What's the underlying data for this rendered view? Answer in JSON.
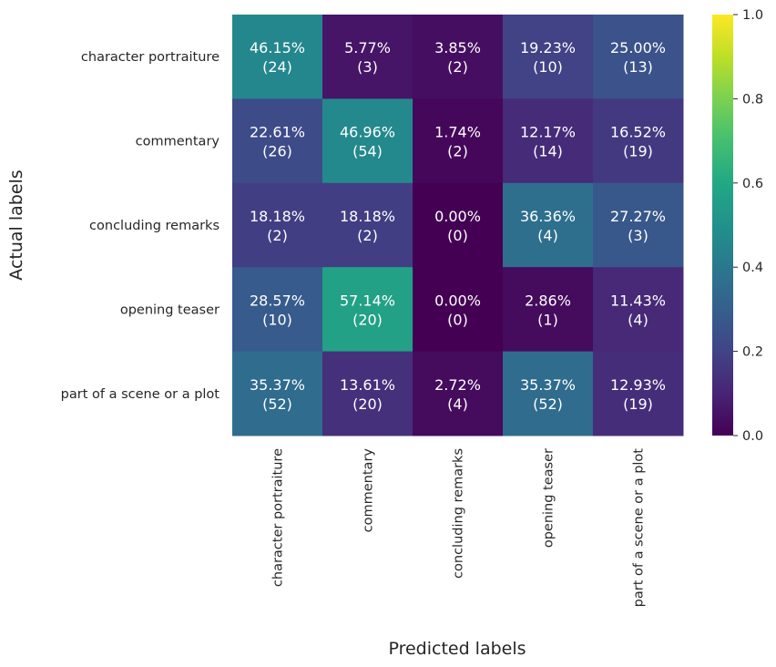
{
  "chart_data": {
    "type": "heatmap",
    "title": "",
    "xlabel": "Predicted labels",
    "ylabel": "Actual labels",
    "row_labels": [
      "character portraiture",
      "commentary",
      "concluding remarks",
      "opening teaser",
      "part of a scene or a plot"
    ],
    "col_labels": [
      "character portraiture",
      "commentary",
      "concluding remarks",
      "opening teaser",
      "part of a scene or a plot"
    ],
    "percent_labels": [
      [
        "46.15%",
        "5.77%",
        "3.85%",
        "19.23%",
        "25.00%"
      ],
      [
        "22.61%",
        "46.96%",
        "1.74%",
        "12.17%",
        "16.52%"
      ],
      [
        "18.18%",
        "18.18%",
        "0.00%",
        "36.36%",
        "27.27%"
      ],
      [
        "28.57%",
        "57.14%",
        "0.00%",
        "2.86%",
        "11.43%"
      ],
      [
        "35.37%",
        "13.61%",
        "2.72%",
        "35.37%",
        "12.93%"
      ]
    ],
    "count_labels": [
      [
        "(24)",
        "(3)",
        "(2)",
        "(10)",
        "(13)"
      ],
      [
        "(26)",
        "(54)",
        "(2)",
        "(14)",
        "(19)"
      ],
      [
        "(2)",
        "(2)",
        "(0)",
        "(4)",
        "(3)"
      ],
      [
        "(10)",
        "(20)",
        "(0)",
        "(1)",
        "(4)"
      ],
      [
        "(52)",
        "(20)",
        "(4)",
        "(52)",
        "(19)"
      ]
    ],
    "values": [
      [
        0.4615,
        0.0577,
        0.0385,
        0.1923,
        0.25
      ],
      [
        0.2261,
        0.4696,
        0.0174,
        0.1217,
        0.1652
      ],
      [
        0.1818,
        0.1818,
        0.0,
        0.3636,
        0.2727
      ],
      [
        0.2857,
        0.5714,
        0.0,
        0.0286,
        0.1143
      ],
      [
        0.3537,
        0.1361,
        0.0272,
        0.3537,
        0.1293
      ]
    ],
    "colormap": "viridis",
    "vmin": 0,
    "vmax": 1,
    "colorbar_ticks": [
      "0.0",
      "0.2",
      "0.4",
      "0.6",
      "0.8",
      "1.0"
    ],
    "colorbar_tick_values": [
      0,
      0.2,
      0.4,
      0.6,
      0.8,
      1.0
    ],
    "grid": false,
    "text_color": "#ffffff",
    "axis_text_color": "#262626"
  }
}
